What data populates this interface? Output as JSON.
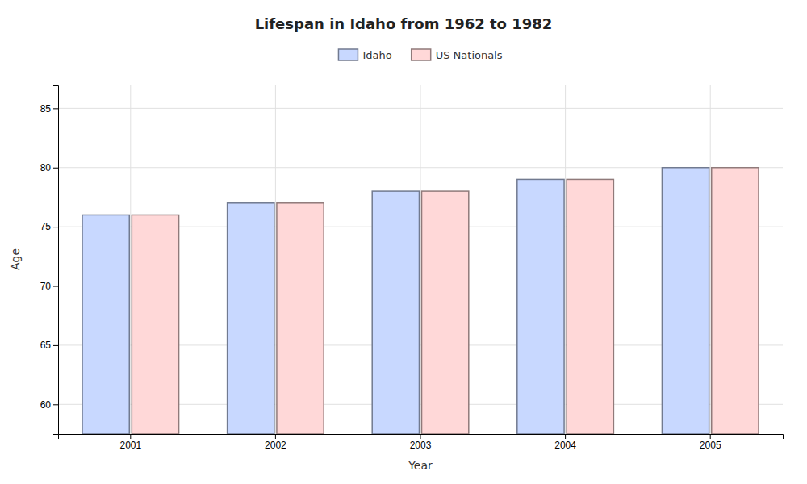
{
  "chart_data": {
    "type": "bar",
    "title": "Lifespan in Idaho from 1962 to 1982",
    "xlabel": "Year",
    "ylabel": "Age",
    "categories": [
      "2001",
      "2002",
      "2003",
      "2004",
      "2005"
    ],
    "series": [
      {
        "name": "Idaho",
        "color": "#c8d8ff",
        "values": [
          76.0,
          77.0,
          78.0,
          79.0,
          80.0
        ]
      },
      {
        "name": "US Nationals",
        "color": "#ffd8d8",
        "values": [
          76.0,
          77.0,
          78.0,
          79.0,
          80.0
        ]
      }
    ],
    "ylim": [
      57.5,
      87
    ],
    "yticks": [
      60,
      65,
      70,
      75,
      80,
      85
    ],
    "grid": true,
    "legend": "top"
  }
}
